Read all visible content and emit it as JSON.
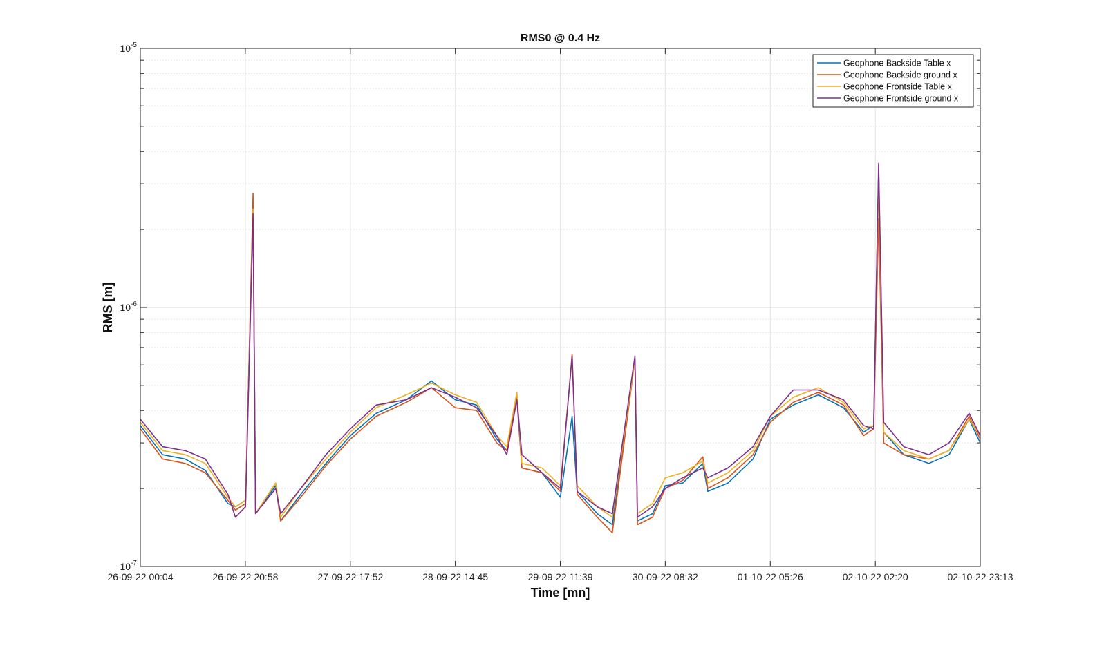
{
  "chart_data": {
    "type": "line",
    "title": "RMS0 @ 0.4 Hz",
    "xlabel": "Time [mn]",
    "ylabel": "RMS [m]",
    "yscale": "log",
    "ylim": [
      1e-07,
      1e-05
    ],
    "grid": true,
    "legend_position": "top-right",
    "x_tick_labels": [
      "26-09-22 00:04",
      "26-09-22 20:58",
      "27-09-22 17:52",
      "28-09-22 14:45",
      "29-09-22 11:39",
      "30-09-22 08:32",
      "01-10-22 05:26",
      "02-10-22 02:20",
      "02-10-22 23:13"
    ],
    "y_ticks": [
      {
        "value": 1e-07,
        "base": "10",
        "exp": "-7"
      },
      {
        "value": 1e-06,
        "base": "10",
        "exp": "-6"
      },
      {
        "value": 1e-05,
        "base": "10",
        "exp": "-5"
      }
    ],
    "series": [
      {
        "name": "Geophone Backside Table x",
        "color": "#0072BD",
        "points": [
          [
            "26-09-22 00:04",
            3.5e-07
          ],
          [
            "26-09-22 04:30",
            2.7e-07
          ],
          [
            "26-09-22 09:00",
            2.6e-07
          ],
          [
            "26-09-22 13:00",
            2.35e-07
          ],
          [
            "26-09-22 17:30",
            1.75e-07
          ],
          [
            "26-09-22 19:00",
            1.7e-07
          ],
          [
            "26-09-22 21:00",
            1.8e-07
          ],
          [
            "26-09-22 22:30",
            2.5e-06
          ],
          [
            "26-09-22 23:00",
            1.6e-07
          ],
          [
            "27-09-22 03:00",
            2.05e-07
          ],
          [
            "27-09-22 04:00",
            1.5e-07
          ],
          [
            "27-09-22 08:00",
            1.9e-07
          ],
          [
            "27-09-22 13:00",
            2.5e-07
          ],
          [
            "27-09-22 17:52",
            3.2e-07
          ],
          [
            "27-09-22 23:00",
            3.9e-07
          ],
          [
            "28-09-22 05:00",
            4.4e-07
          ],
          [
            "28-09-22 10:00",
            5.2e-07
          ],
          [
            "28-09-22 14:45",
            4.4e-07
          ],
          [
            "28-09-22 19:00",
            4.2e-07
          ],
          [
            "28-09-22 23:00",
            3.1e-07
          ],
          [
            "29-09-22 01:00",
            2.8e-07
          ],
          [
            "29-09-22 03:00",
            4.4e-07
          ],
          [
            "29-09-22 04:00",
            2.4e-07
          ],
          [
            "29-09-22 08:00",
            2.3e-07
          ],
          [
            "29-09-22 11:39",
            1.85e-07
          ],
          [
            "29-09-22 14:00",
            3.8e-07
          ],
          [
            "29-09-22 15:00",
            1.95e-07
          ],
          [
            "29-09-22 19:00",
            1.6e-07
          ],
          [
            "29-09-22 22:00",
            1.45e-07
          ],
          [
            "30-09-22 02:30",
            6.3e-07
          ],
          [
            "30-09-22 03:00",
            1.5e-07
          ],
          [
            "30-09-22 06:00",
            1.6e-07
          ],
          [
            "30-09-22 08:32",
            2.05e-07
          ],
          [
            "30-09-22 12:00",
            2.1e-07
          ],
          [
            "30-09-22 16:00",
            2.5e-07
          ],
          [
            "30-09-22 17:00",
            1.95e-07
          ],
          [
            "30-09-22 21:00",
            2.1e-07
          ],
          [
            "01-10-22 02:00",
            2.6e-07
          ],
          [
            "01-10-22 05:26",
            3.7e-07
          ],
          [
            "01-10-22 10:00",
            4.2e-07
          ],
          [
            "01-10-22 15:00",
            4.6e-07
          ],
          [
            "01-10-22 20:00",
            4.1e-07
          ],
          [
            "02-10-22 00:00",
            3.3e-07
          ],
          [
            "02-10-22 02:00",
            3.5e-07
          ],
          [
            "02-10-22 03:00",
            3.4e-06
          ],
          [
            "02-10-22 04:00",
            3.3e-07
          ],
          [
            "02-10-22 08:00",
            2.7e-07
          ],
          [
            "02-10-22 13:00",
            2.5e-07
          ],
          [
            "02-10-22 17:00",
            2.7e-07
          ],
          [
            "02-10-22 21:00",
            3.7e-07
          ],
          [
            "02-10-22 23:13",
            3e-07
          ]
        ]
      },
      {
        "name": "Geophone Backside ground x",
        "color": "#D95319",
        "points": [
          [
            "26-09-22 00:04",
            3.4e-07
          ],
          [
            "26-09-22 04:30",
            2.6e-07
          ],
          [
            "26-09-22 09:00",
            2.5e-07
          ],
          [
            "26-09-22 13:00",
            2.3e-07
          ],
          [
            "26-09-22 17:30",
            1.8e-07
          ],
          [
            "26-09-22 19:00",
            1.65e-07
          ],
          [
            "26-09-22 21:00",
            1.75e-07
          ],
          [
            "26-09-22 22:30",
            2.75e-06
          ],
          [
            "26-09-22 23:00",
            1.6e-07
          ],
          [
            "27-09-22 03:00",
            2.1e-07
          ],
          [
            "27-09-22 04:00",
            1.5e-07
          ],
          [
            "27-09-22 08:00",
            1.85e-07
          ],
          [
            "27-09-22 13:00",
            2.45e-07
          ],
          [
            "27-09-22 17:52",
            3.1e-07
          ],
          [
            "27-09-22 23:00",
            3.8e-07
          ],
          [
            "28-09-22 05:00",
            4.3e-07
          ],
          [
            "28-09-22 10:00",
            4.9e-07
          ],
          [
            "28-09-22 14:45",
            4.1e-07
          ],
          [
            "28-09-22 19:00",
            4e-07
          ],
          [
            "28-09-22 23:00",
            3e-07
          ],
          [
            "29-09-22 01:00",
            2.8e-07
          ],
          [
            "29-09-22 03:00",
            4.5e-07
          ],
          [
            "29-09-22 04:00",
            2.4e-07
          ],
          [
            "29-09-22 08:00",
            2.3e-07
          ],
          [
            "29-09-22 11:39",
            1.95e-07
          ],
          [
            "29-09-22 14:00",
            6.6e-07
          ],
          [
            "29-09-22 15:00",
            1.9e-07
          ],
          [
            "29-09-22 19:00",
            1.55e-07
          ],
          [
            "29-09-22 22:00",
            1.35e-07
          ],
          [
            "30-09-22 02:30",
            6.3e-07
          ],
          [
            "30-09-22 03:00",
            1.45e-07
          ],
          [
            "30-09-22 06:00",
            1.55e-07
          ],
          [
            "30-09-22 08:32",
            2e-07
          ],
          [
            "30-09-22 12:00",
            2.15e-07
          ],
          [
            "30-09-22 16:00",
            2.65e-07
          ],
          [
            "30-09-22 17:00",
            2e-07
          ],
          [
            "30-09-22 21:00",
            2.2e-07
          ],
          [
            "01-10-22 02:00",
            2.7e-07
          ],
          [
            "01-10-22 05:26",
            3.6e-07
          ],
          [
            "01-10-22 10:00",
            4.3e-07
          ],
          [
            "01-10-22 15:00",
            4.7e-07
          ],
          [
            "01-10-22 20:00",
            4.2e-07
          ],
          [
            "02-10-22 00:00",
            3.2e-07
          ],
          [
            "02-10-22 02:00",
            3.4e-07
          ],
          [
            "02-10-22 03:00",
            2.2e-06
          ],
          [
            "02-10-22 04:00",
            3e-07
          ],
          [
            "02-10-22 08:00",
            2.7e-07
          ],
          [
            "02-10-22 13:00",
            2.6e-07
          ],
          [
            "02-10-22 17:00",
            2.8e-07
          ],
          [
            "02-10-22 21:00",
            3.8e-07
          ],
          [
            "02-10-22 23:13",
            3.1e-07
          ]
        ]
      },
      {
        "name": "Geophone Frontside Table x",
        "color": "#EDB120",
        "points": [
          [
            "26-09-22 00:04",
            3.6e-07
          ],
          [
            "26-09-22 04:30",
            2.8e-07
          ],
          [
            "26-09-22 09:00",
            2.7e-07
          ],
          [
            "26-09-22 13:00",
            2.5e-07
          ],
          [
            "26-09-22 17:30",
            1.85e-07
          ],
          [
            "26-09-22 19:00",
            1.7e-07
          ],
          [
            "26-09-22 21:00",
            1.8e-07
          ],
          [
            "26-09-22 22:30",
            2.4e-06
          ],
          [
            "26-09-22 23:00",
            1.6e-07
          ],
          [
            "27-09-22 03:00",
            2.1e-07
          ],
          [
            "27-09-22 04:00",
            1.55e-07
          ],
          [
            "27-09-22 08:00",
            2e-07
          ],
          [
            "27-09-22 13:00",
            2.6e-07
          ],
          [
            "27-09-22 17:52",
            3.3e-07
          ],
          [
            "27-09-22 23:00",
            4.1e-07
          ],
          [
            "28-09-22 05:00",
            4.6e-07
          ],
          [
            "28-09-22 10:00",
            5.1e-07
          ],
          [
            "28-09-22 14:45",
            4.6e-07
          ],
          [
            "28-09-22 19:00",
            4.3e-07
          ],
          [
            "28-09-22 23:00",
            3.2e-07
          ],
          [
            "29-09-22 01:00",
            2.9e-07
          ],
          [
            "29-09-22 03:00",
            4.7e-07
          ],
          [
            "29-09-22 04:00",
            2.5e-07
          ],
          [
            "29-09-22 08:00",
            2.4e-07
          ],
          [
            "29-09-22 11:39",
            2.05e-07
          ],
          [
            "29-09-22 14:00",
            6.4e-07
          ],
          [
            "29-09-22 15:00",
            2.05e-07
          ],
          [
            "29-09-22 19:00",
            1.7e-07
          ],
          [
            "29-09-22 22:00",
            1.55e-07
          ],
          [
            "30-09-22 02:30",
            6.3e-07
          ],
          [
            "30-09-22 03:00",
            1.6e-07
          ],
          [
            "30-09-22 06:00",
            1.75e-07
          ],
          [
            "30-09-22 08:32",
            2.2e-07
          ],
          [
            "30-09-22 12:00",
            2.3e-07
          ],
          [
            "30-09-22 16:00",
            2.55e-07
          ],
          [
            "30-09-22 17:00",
            2.1e-07
          ],
          [
            "30-09-22 21:00",
            2.3e-07
          ],
          [
            "01-10-22 02:00",
            2.8e-07
          ],
          [
            "01-10-22 05:26",
            3.8e-07
          ],
          [
            "01-10-22 10:00",
            4.5e-07
          ],
          [
            "01-10-22 15:00",
            4.9e-07
          ],
          [
            "01-10-22 20:00",
            4.3e-07
          ],
          [
            "02-10-22 00:00",
            3.4e-07
          ],
          [
            "02-10-22 02:00",
            3.5e-07
          ],
          [
            "02-10-22 03:00",
            3.1e-06
          ],
          [
            "02-10-22 04:00",
            3.3e-07
          ],
          [
            "02-10-22 08:00",
            2.8e-07
          ],
          [
            "02-10-22 13:00",
            2.6e-07
          ],
          [
            "02-10-22 17:00",
            2.8e-07
          ],
          [
            "02-10-22 21:00",
            3.7e-07
          ],
          [
            "02-10-22 23:13",
            3.2e-07
          ]
        ]
      },
      {
        "name": "Geophone Frontside ground x",
        "color": "#7E2F8E",
        "points": [
          [
            "26-09-22 00:04",
            3.7e-07
          ],
          [
            "26-09-22 04:30",
            2.9e-07
          ],
          [
            "26-09-22 09:00",
            2.8e-07
          ],
          [
            "26-09-22 13:00",
            2.6e-07
          ],
          [
            "26-09-22 17:30",
            1.9e-07
          ],
          [
            "26-09-22 19:00",
            1.55e-07
          ],
          [
            "26-09-22 21:00",
            1.7e-07
          ],
          [
            "26-09-22 22:30",
            2.3e-06
          ],
          [
            "26-09-22 23:00",
            1.6e-07
          ],
          [
            "27-09-22 03:00",
            2e-07
          ],
          [
            "27-09-22 04:00",
            1.6e-07
          ],
          [
            "27-09-22 08:00",
            2e-07
          ],
          [
            "27-09-22 13:00",
            2.7e-07
          ],
          [
            "27-09-22 17:52",
            3.4e-07
          ],
          [
            "27-09-22 23:00",
            4.2e-07
          ],
          [
            "28-09-22 05:00",
            4.4e-07
          ],
          [
            "28-09-22 10:00",
            4.9e-07
          ],
          [
            "28-09-22 14:45",
            4.5e-07
          ],
          [
            "28-09-22 19:00",
            4.1e-07
          ],
          [
            "28-09-22 23:00",
            3.2e-07
          ],
          [
            "29-09-22 01:00",
            2.7e-07
          ],
          [
            "29-09-22 03:00",
            4.4e-07
          ],
          [
            "29-09-22 04:00",
            2.7e-07
          ],
          [
            "29-09-22 08:00",
            2.3e-07
          ],
          [
            "29-09-22 11:39",
            2e-07
          ],
          [
            "29-09-22 14:00",
            6.5e-07
          ],
          [
            "29-09-22 15:00",
            1.95e-07
          ],
          [
            "29-09-22 19:00",
            1.7e-07
          ],
          [
            "29-09-22 22:00",
            1.6e-07
          ],
          [
            "30-09-22 02:30",
            6.5e-07
          ],
          [
            "30-09-22 03:00",
            1.55e-07
          ],
          [
            "30-09-22 06:00",
            1.7e-07
          ],
          [
            "30-09-22 08:32",
            2e-07
          ],
          [
            "30-09-22 12:00",
            2.2e-07
          ],
          [
            "30-09-22 16:00",
            2.4e-07
          ],
          [
            "30-09-22 17:00",
            2.2e-07
          ],
          [
            "30-09-22 21:00",
            2.4e-07
          ],
          [
            "01-10-22 02:00",
            2.9e-07
          ],
          [
            "01-10-22 05:26",
            3.8e-07
          ],
          [
            "01-10-22 10:00",
            4.8e-07
          ],
          [
            "01-10-22 15:00",
            4.8e-07
          ],
          [
            "01-10-22 20:00",
            4.4e-07
          ],
          [
            "02-10-22 00:00",
            3.5e-07
          ],
          [
            "02-10-22 02:00",
            3.4e-07
          ],
          [
            "02-10-22 03:00",
            3.6e-06
          ],
          [
            "02-10-22 04:00",
            3.6e-07
          ],
          [
            "02-10-22 08:00",
            2.9e-07
          ],
          [
            "02-10-22 13:00",
            2.7e-07
          ],
          [
            "02-10-22 17:00",
            3e-07
          ],
          [
            "02-10-22 21:00",
            3.9e-07
          ],
          [
            "02-10-22 23:13",
            3.2e-07
          ]
        ]
      }
    ]
  }
}
